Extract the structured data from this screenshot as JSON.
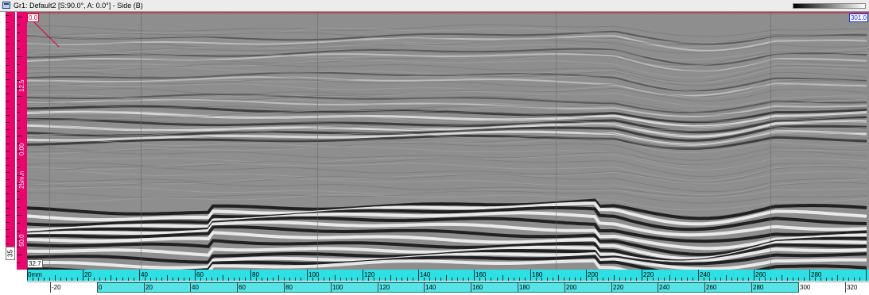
{
  "window": {
    "title": "Gr1: Default2 [S:90.0°, A: 0.0°] - Side (B)"
  },
  "colorbar": {
    "from": "#000000",
    "to": "#ffffff"
  },
  "bscan": {
    "start_cursor": "0.0",
    "end_cursor": "301.0",
    "depth_end": "32.7"
  },
  "left_panel": {
    "bottom_value": "35",
    "marks": [
      "12.5",
      "0.00",
      "25mm",
      "50.0"
    ]
  },
  "scan_axis": {
    "unit_label": "0mm",
    "labels": [
      "20",
      "40",
      "60",
      "80",
      "100",
      "120",
      "140",
      "160",
      "180",
      "200",
      "220",
      "240",
      "260",
      "280"
    ]
  },
  "index_axis": {
    "labels": [
      "-20",
      "0",
      "20",
      "40",
      "60",
      "80",
      "100",
      "120",
      "140",
      "160",
      "180",
      "200",
      "220",
      "240",
      "260",
      "280",
      "300",
      "320"
    ]
  },
  "colors": {
    "accent_magenta": "#e8056c",
    "ruler_cyan": "#2ee0e3",
    "cursor_red": "#d6003c",
    "cursor_blue": "#1a2fd6"
  }
}
